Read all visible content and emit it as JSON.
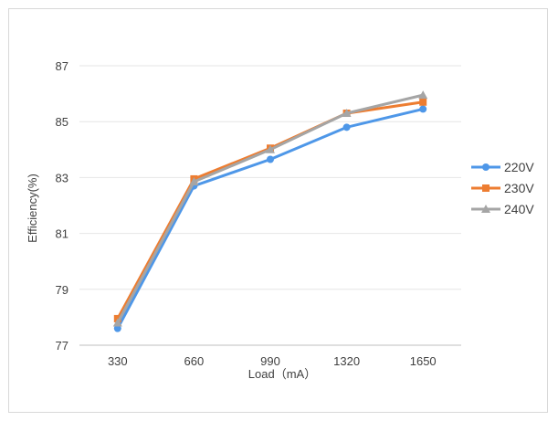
{
  "chart_data": {
    "type": "line",
    "x": [
      330,
      660,
      990,
      1320,
      1650
    ],
    "x_tick_labels": [
      "330",
      "660",
      "990",
      "1320",
      "1650"
    ],
    "xlabel": "Load（mA）",
    "ylabel": "Efficiency(%)",
    "ylim": [
      77,
      87
    ],
    "y_ticks": [
      77,
      79,
      81,
      83,
      85,
      87
    ],
    "y_tick_labels": [
      "77",
      "79",
      "81",
      "83",
      "85",
      "87"
    ],
    "grid": true,
    "legend_position": "right",
    "series": [
      {
        "name": "220V",
        "color": "#4e97e8",
        "marker": "circle",
        "values": [
          77.6,
          82.7,
          83.65,
          84.8,
          85.45
        ]
      },
      {
        "name": "230V",
        "color": "#ed7d31",
        "marker": "square",
        "values": [
          77.95,
          82.95,
          84.05,
          85.3,
          85.7
        ]
      },
      {
        "name": "240V",
        "color": "#a5a5a5",
        "marker": "triangle",
        "values": [
          77.8,
          82.85,
          84.0,
          85.3,
          85.95
        ]
      }
    ]
  }
}
